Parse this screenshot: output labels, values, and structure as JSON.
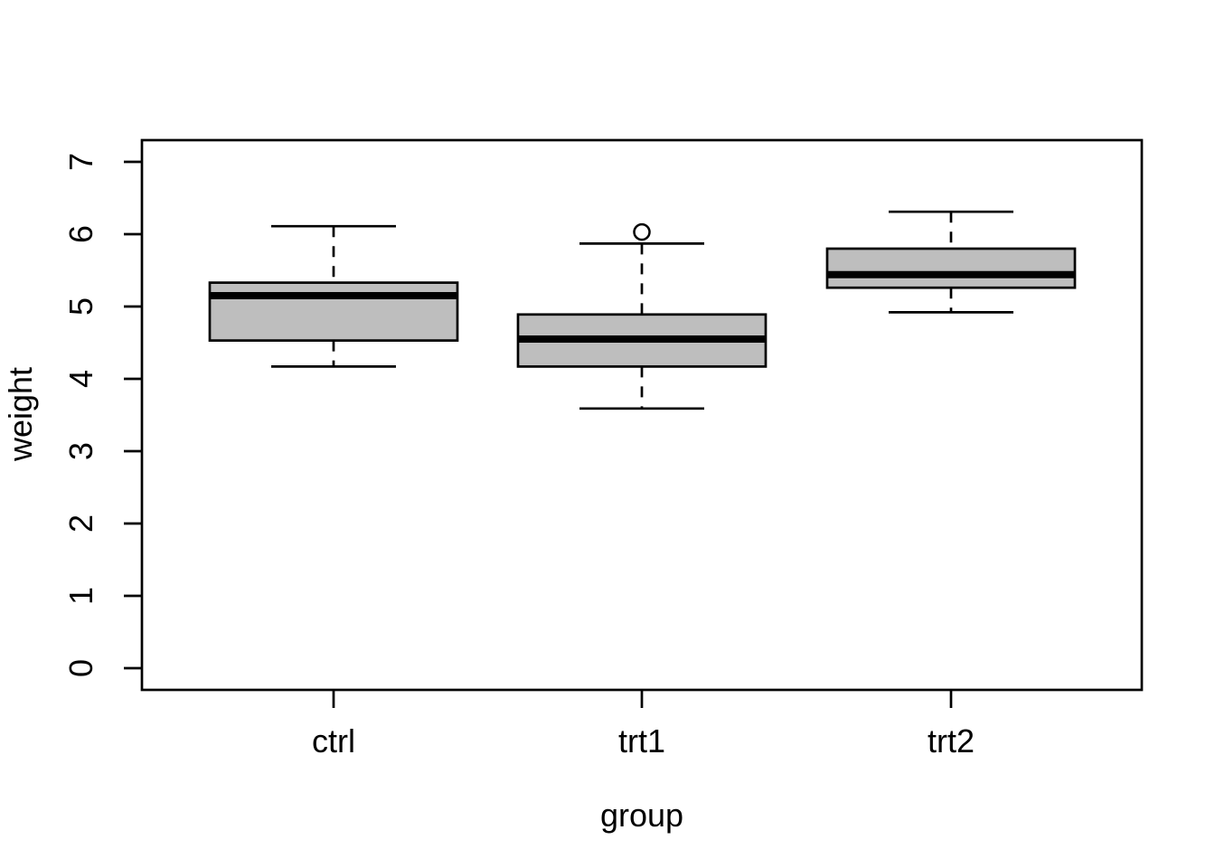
{
  "chart_data": {
    "type": "boxplot",
    "title": "",
    "xlabel": "group",
    "ylabel": "weight",
    "categories": [
      "ctrl",
      "trt1",
      "trt2"
    ],
    "y_ticks": [
      "0",
      "1",
      "2",
      "3",
      "4",
      "5",
      "6",
      "7"
    ],
    "y_tick_values": [
      0,
      1,
      2,
      3,
      4,
      5,
      6,
      7
    ],
    "ylim": [
      -0.3,
      7.3
    ],
    "grid": false,
    "orientation": "vertical",
    "series": [
      {
        "name": "ctrl",
        "lower_whisker": 4.17,
        "q1": 4.53,
        "median": 5.15,
        "q3": 5.33,
        "upper_whisker": 6.11,
        "outliers": []
      },
      {
        "name": "trt1",
        "lower_whisker": 3.59,
        "q1": 4.17,
        "median": 4.55,
        "q3": 4.89,
        "upper_whisker": 5.87,
        "outliers": [
          6.03
        ]
      },
      {
        "name": "trt2",
        "lower_whisker": 4.92,
        "q1": 5.26,
        "median": 5.44,
        "q3": 5.8,
        "upper_whisker": 6.31,
        "outliers": []
      }
    ],
    "colors": {
      "box_fill": "#bebebe",
      "line": "#000000",
      "background": "#ffffff"
    }
  }
}
